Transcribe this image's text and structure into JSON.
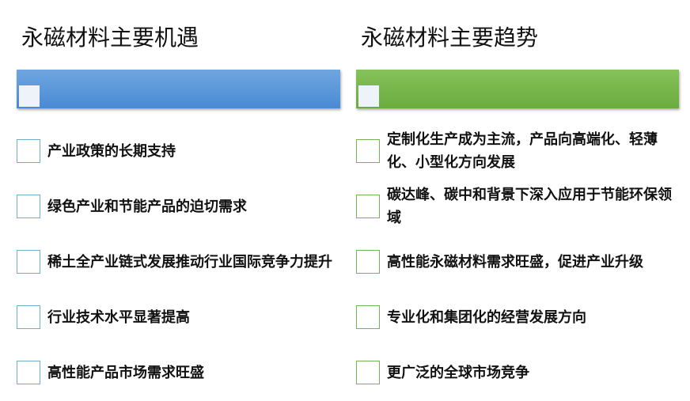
{
  "columns": [
    {
      "title": "永磁材料主要机遇",
      "items": [
        "产业政策的长期支持",
        "绿色产业和节能产品的迫切需求",
        "稀土全产业链式发展推动行业国际竞争力提升",
        "行业技术水平显著提高",
        "高性能产品市场需求旺盛"
      ]
    },
    {
      "title": "永磁材料主要趋势",
      "items": [
        "定制化生产成为主流，产品向高端化、轻薄化、小型化方向发展",
        "碳达峰、碳中和背景下深入应用于节能环保领域",
        "高性能永磁材料需求旺盛，促进产业升级",
        "专业化和集团化的经营发展方向",
        "更广泛的全球市场竞争"
      ]
    }
  ]
}
